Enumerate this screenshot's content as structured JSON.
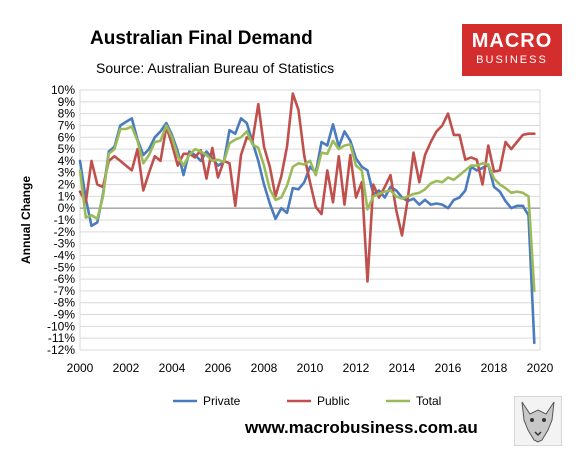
{
  "header": {
    "title": "Australian Final Demand",
    "source": "Source: Australian Bureau of Statistics",
    "logo_line1": "MACRO",
    "logo_line2": "BUSINESS",
    "url": "www.macrobusiness.com.au"
  },
  "colors": {
    "private": "#4a7bbf",
    "public": "#c0504d",
    "total": "#9bbb59",
    "logo": "#d42d2d"
  },
  "chart_data": {
    "type": "line",
    "title": "Australian Final Demand",
    "ylabel": "Annual Change",
    "xlabel": "",
    "xlim": [
      2000,
      2020
    ],
    "ylim": [
      -12,
      10
    ],
    "y_unit": "%",
    "y_ticks": [
      10,
      9,
      8,
      7,
      6,
      5,
      4,
      3,
      2,
      1,
      0,
      -1,
      -2,
      -3,
      -4,
      -5,
      -6,
      -7,
      -8,
      -9,
      -10,
      -11,
      -12
    ],
    "y_tick_labels": [
      "10%",
      "9%",
      "8%",
      "7%",
      "6%",
      "5%",
      "4%",
      "3%",
      "2%",
      "1%",
      "0%",
      "-1%",
      "-2%",
      "-3%",
      "-4%",
      "-5%",
      "-6%",
      "-7%",
      "-8%",
      "-9%",
      "-10%",
      "-11%",
      "-12%"
    ],
    "x_ticks": [
      2000,
      2002,
      2004,
      2006,
      2008,
      2010,
      2012,
      2014,
      2016,
      2018,
      2020
    ],
    "x_tick_labels": [
      "2000",
      "2002",
      "2004",
      "2006",
      "2008",
      "2010",
      "2012",
      "2014",
      "2016",
      "2018",
      "2020"
    ],
    "grid": "y-major",
    "legend_position": "bottom",
    "series": [
      {
        "name": "Private",
        "color_key": "private",
        "x": [
          2000.0,
          2000.25,
          2000.5,
          2000.75,
          2001.0,
          2001.25,
          2001.5,
          2001.75,
          2002.0,
          2002.25,
          2002.5,
          2002.75,
          2003.0,
          2003.25,
          2003.5,
          2003.75,
          2004.0,
          2004.25,
          2004.5,
          2004.75,
          2005.0,
          2005.25,
          2005.5,
          2005.75,
          2006.0,
          2006.25,
          2006.5,
          2006.75,
          2007.0,
          2007.25,
          2007.5,
          2007.75,
          2008.0,
          2008.25,
          2008.5,
          2008.75,
          2009.0,
          2009.25,
          2009.5,
          2009.75,
          2010.0,
          2010.25,
          2010.5,
          2010.75,
          2011.0,
          2011.25,
          2011.5,
          2011.75,
          2012.0,
          2012.25,
          2012.5,
          2012.75,
          2013.0,
          2013.25,
          2013.5,
          2013.75,
          2014.0,
          2014.25,
          2014.5,
          2014.75,
          2015.0,
          2015.25,
          2015.5,
          2015.75,
          2016.0,
          2016.25,
          2016.5,
          2016.75,
          2017.0,
          2017.25,
          2017.5,
          2017.75,
          2018.0,
          2018.25,
          2018.5,
          2018.75,
          2019.0,
          2019.25,
          2019.5,
          2019.75
        ],
        "values": [
          4.0,
          0.8,
          -1.5,
          -1.2,
          1.2,
          4.8,
          5.2,
          7.0,
          7.3,
          7.6,
          5.8,
          4.5,
          5.0,
          6.0,
          6.5,
          7.2,
          6.2,
          4.8,
          2.8,
          4.8,
          4.5,
          4.0,
          4.8,
          4.2,
          3.6,
          3.9,
          6.6,
          6.3,
          7.6,
          7.2,
          5.6,
          4.0,
          2.0,
          0.4,
          -0.9,
          0.0,
          -0.4,
          1.7,
          1.6,
          2.2,
          3.5,
          3.0,
          5.6,
          5.3,
          7.1,
          5.2,
          6.5,
          5.7,
          4.2,
          3.5,
          3.2,
          1.2,
          1.5,
          0.9,
          1.8,
          1.5,
          0.9,
          0.6,
          0.8,
          0.3,
          0.7,
          0.3,
          0.4,
          0.3,
          0.0,
          0.7,
          0.9,
          1.5,
          3.5,
          3.2,
          3.4,
          3.7,
          1.8,
          1.4,
          0.6,
          0.0,
          0.2,
          0.2,
          -0.6,
          -11.4
        ]
      },
      {
        "name": "Public",
        "color_key": "public",
        "x": [
          2000.0,
          2000.25,
          2000.5,
          2000.75,
          2001.0,
          2001.25,
          2001.5,
          2001.75,
          2002.0,
          2002.25,
          2002.5,
          2002.75,
          2003.0,
          2003.25,
          2003.5,
          2003.75,
          2004.0,
          2004.25,
          2004.5,
          2004.75,
          2005.0,
          2005.25,
          2005.5,
          2005.75,
          2006.0,
          2006.25,
          2006.5,
          2006.75,
          2007.0,
          2007.25,
          2007.5,
          2007.75,
          2008.0,
          2008.25,
          2008.5,
          2008.75,
          2009.0,
          2009.25,
          2009.5,
          2009.75,
          2010.0,
          2010.25,
          2010.5,
          2010.75,
          2011.0,
          2011.25,
          2011.5,
          2011.75,
          2012.0,
          2012.25,
          2012.5,
          2012.75,
          2013.0,
          2013.25,
          2013.5,
          2013.75,
          2014.0,
          2014.25,
          2014.5,
          2014.75,
          2015.0,
          2015.25,
          2015.5,
          2015.75,
          2016.0,
          2016.25,
          2016.5,
          2016.75,
          2017.0,
          2017.25,
          2017.5,
          2017.75,
          2018.0,
          2018.25,
          2018.5,
          2018.75,
          2019.0,
          2019.25,
          2019.5,
          2019.75
        ],
        "values": [
          1.4,
          0.5,
          4.0,
          2.0,
          1.8,
          4.0,
          4.4,
          4.0,
          3.6,
          3.2,
          5.0,
          1.5,
          3.0,
          4.4,
          4.0,
          6.9,
          5.4,
          3.6,
          4.6,
          4.6,
          4.3,
          4.9,
          2.5,
          5.1,
          2.6,
          4.0,
          3.8,
          0.2,
          4.5,
          6.0,
          5.7,
          8.8,
          5.2,
          3.5,
          1.0,
          2.7,
          5.2,
          9.7,
          8.3,
          4.4,
          2.2,
          0.1,
          -0.5,
          3.2,
          0.5,
          4.4,
          0.3,
          4.5,
          0.9,
          2.2,
          -6.2,
          2.0,
          0.9,
          1.8,
          2.8,
          -0.2,
          -2.3,
          0.8,
          4.7,
          2.2,
          4.5,
          5.6,
          6.5,
          7.0,
          8.0,
          6.2,
          6.2,
          4.1,
          4.3,
          4.1,
          2.0,
          5.3,
          3.1,
          3.2,
          5.6,
          5.0,
          5.6,
          6.2,
          6.3,
          6.3
        ]
      },
      {
        "name": "Total",
        "color_key": "total",
        "x": [
          2000.0,
          2000.25,
          2000.5,
          2000.75,
          2001.0,
          2001.25,
          2001.5,
          2001.75,
          2002.0,
          2002.25,
          2002.5,
          2002.75,
          2003.0,
          2003.25,
          2003.5,
          2003.75,
          2004.0,
          2004.25,
          2004.5,
          2004.75,
          2005.0,
          2005.25,
          2005.5,
          2005.75,
          2006.0,
          2006.25,
          2006.5,
          2006.75,
          2007.0,
          2007.25,
          2007.5,
          2007.75,
          2008.0,
          2008.25,
          2008.5,
          2008.75,
          2009.0,
          2009.25,
          2009.5,
          2009.75,
          2010.0,
          2010.25,
          2010.5,
          2010.75,
          2011.0,
          2011.25,
          2011.5,
          2011.75,
          2012.0,
          2012.25,
          2012.5,
          2012.75,
          2013.0,
          2013.25,
          2013.5,
          2013.75,
          2014.0,
          2014.25,
          2014.5,
          2014.75,
          2015.0,
          2015.25,
          2015.5,
          2015.75,
          2016.0,
          2016.25,
          2016.5,
          2016.75,
          2017.0,
          2017.25,
          2017.5,
          2017.75,
          2018.0,
          2018.25,
          2018.5,
          2018.75,
          2019.0,
          2019.25,
          2019.5,
          2019.75
        ],
        "values": [
          3.2,
          -0.8,
          -0.6,
          -0.9,
          1.0,
          4.6,
          5.0,
          6.7,
          6.7,
          6.9,
          5.7,
          3.8,
          4.5,
          5.6,
          5.7,
          7.0,
          6.0,
          4.4,
          3.6,
          4.5,
          5.0,
          4.8,
          4.5,
          4.0,
          4.1,
          3.9,
          5.5,
          5.8,
          6.0,
          6.5,
          5.4,
          5.1,
          3.6,
          1.6,
          0.7,
          0.9,
          1.9,
          3.5,
          3.8,
          3.7,
          4.0,
          2.8,
          4.7,
          4.6,
          5.7,
          5.0,
          5.3,
          5.4,
          3.6,
          3.2,
          -0.1,
          1.0,
          1.2,
          1.4,
          1.5,
          1.0,
          0.8,
          1.0,
          1.2,
          1.3,
          1.6,
          2.1,
          2.3,
          2.2,
          2.6,
          2.4,
          2.8,
          3.2,
          3.6,
          3.6,
          3.8,
          3.7,
          2.5,
          2.0,
          1.7,
          1.3,
          1.4,
          1.3,
          1.0,
          -7.0
        ]
      }
    ]
  }
}
